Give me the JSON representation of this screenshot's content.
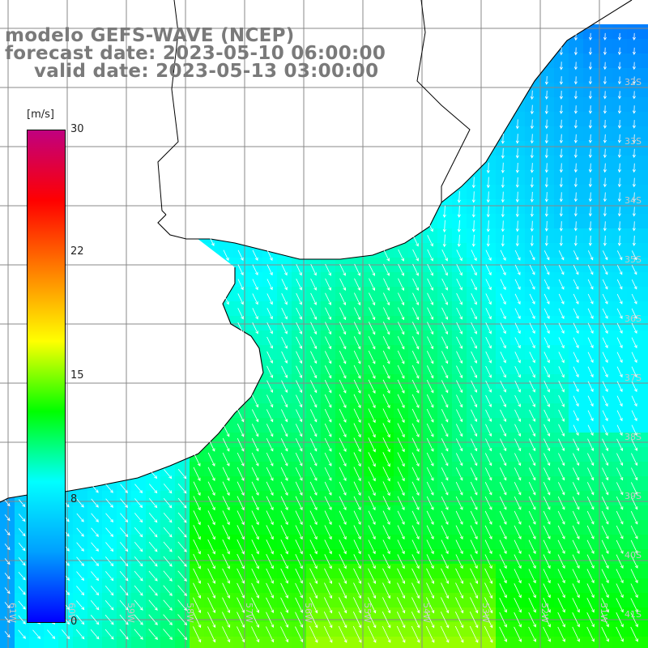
{
  "title": {
    "line1": "modelo GEFS-WAVE (NCEP)",
    "line2": "forecast date: 2023-05-10 06:00:00",
    "line3": "valid date: 2023-05-13 03:00:00"
  },
  "colorbar": {
    "unit": "[m/s]",
    "ticks": [
      "30",
      "22",
      "15",
      "8",
      "0"
    ],
    "min": 0,
    "max": 30,
    "colors": [
      "#0000ff",
      "#00a0ff",
      "#00ffff",
      "#00ff00",
      "#ffff00",
      "#ff8000",
      "#ff0000",
      "#c00080"
    ]
  },
  "grid": {
    "lat_labels": [
      "32S",
      "33S",
      "34S",
      "35S",
      "36S",
      "37S",
      "38S",
      "39S",
      "40S",
      "41S"
    ],
    "lon_labels": [
      "61W",
      "60W",
      "59W",
      "58W",
      "57W",
      "56W",
      "55W",
      "54W",
      "53W",
      "52W",
      "51W"
    ]
  },
  "field": {
    "variable": "wind speed",
    "units": "m/s",
    "dominant_direction": "toward south-southeast"
  }
}
